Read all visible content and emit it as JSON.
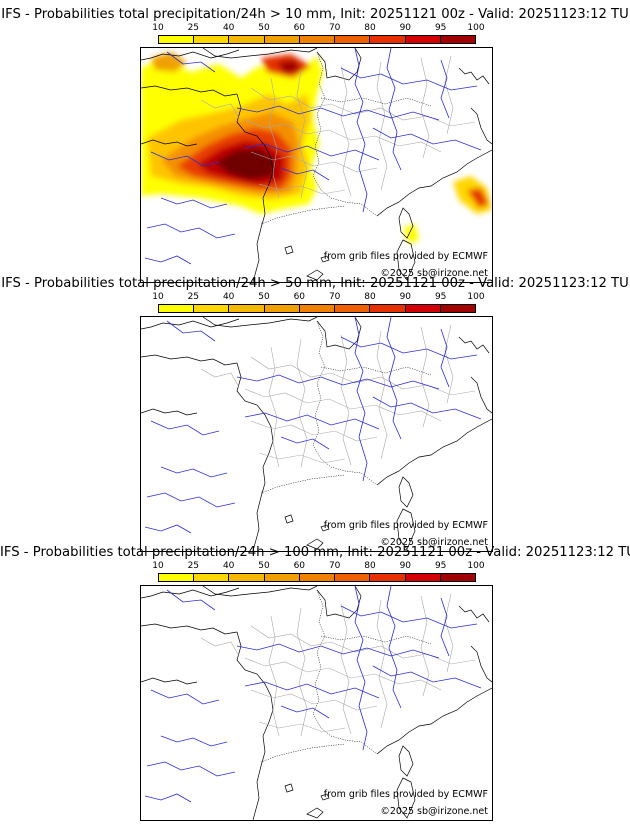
{
  "colorbar": {
    "labels": [
      "10",
      "25",
      "40",
      "50",
      "60",
      "70",
      "80",
      "90",
      "95",
      "100"
    ],
    "colors": [
      "#ffff00",
      "#ffd700",
      "#f5b800",
      "#f0a000",
      "#f08000",
      "#f06000",
      "#e63000",
      "#d20000",
      "#a00000",
      "#700000"
    ]
  },
  "panels": [
    {
      "title": "IFS - Probabilities total precipitation/24h > 10 mm, Init: 20251121 00z - Valid: 20251123:12 TU",
      "credit_ecmwf": "from grib files provided by ECMWF",
      "credit_copy": "©2025 sb@irizone.net"
    },
    {
      "title": "IFS - Probabilities total precipitation/24h > 50 mm, Init: 20251121 00z - Valid: 20251123:12 TU",
      "credit_ecmwf": "from grib files provided by ECMWF",
      "credit_copy": "©2025 sb@irizone.net"
    },
    {
      "title": "IFS - Probabilities total precipitation/24h > 100 mm, Init: 20251121 00z - Valid: 20251123:12 TU",
      "credit_ecmwf": "from grib files provided by ECMWF",
      "credit_copy": "©2025 sb@irizone.net"
    }
  ]
}
